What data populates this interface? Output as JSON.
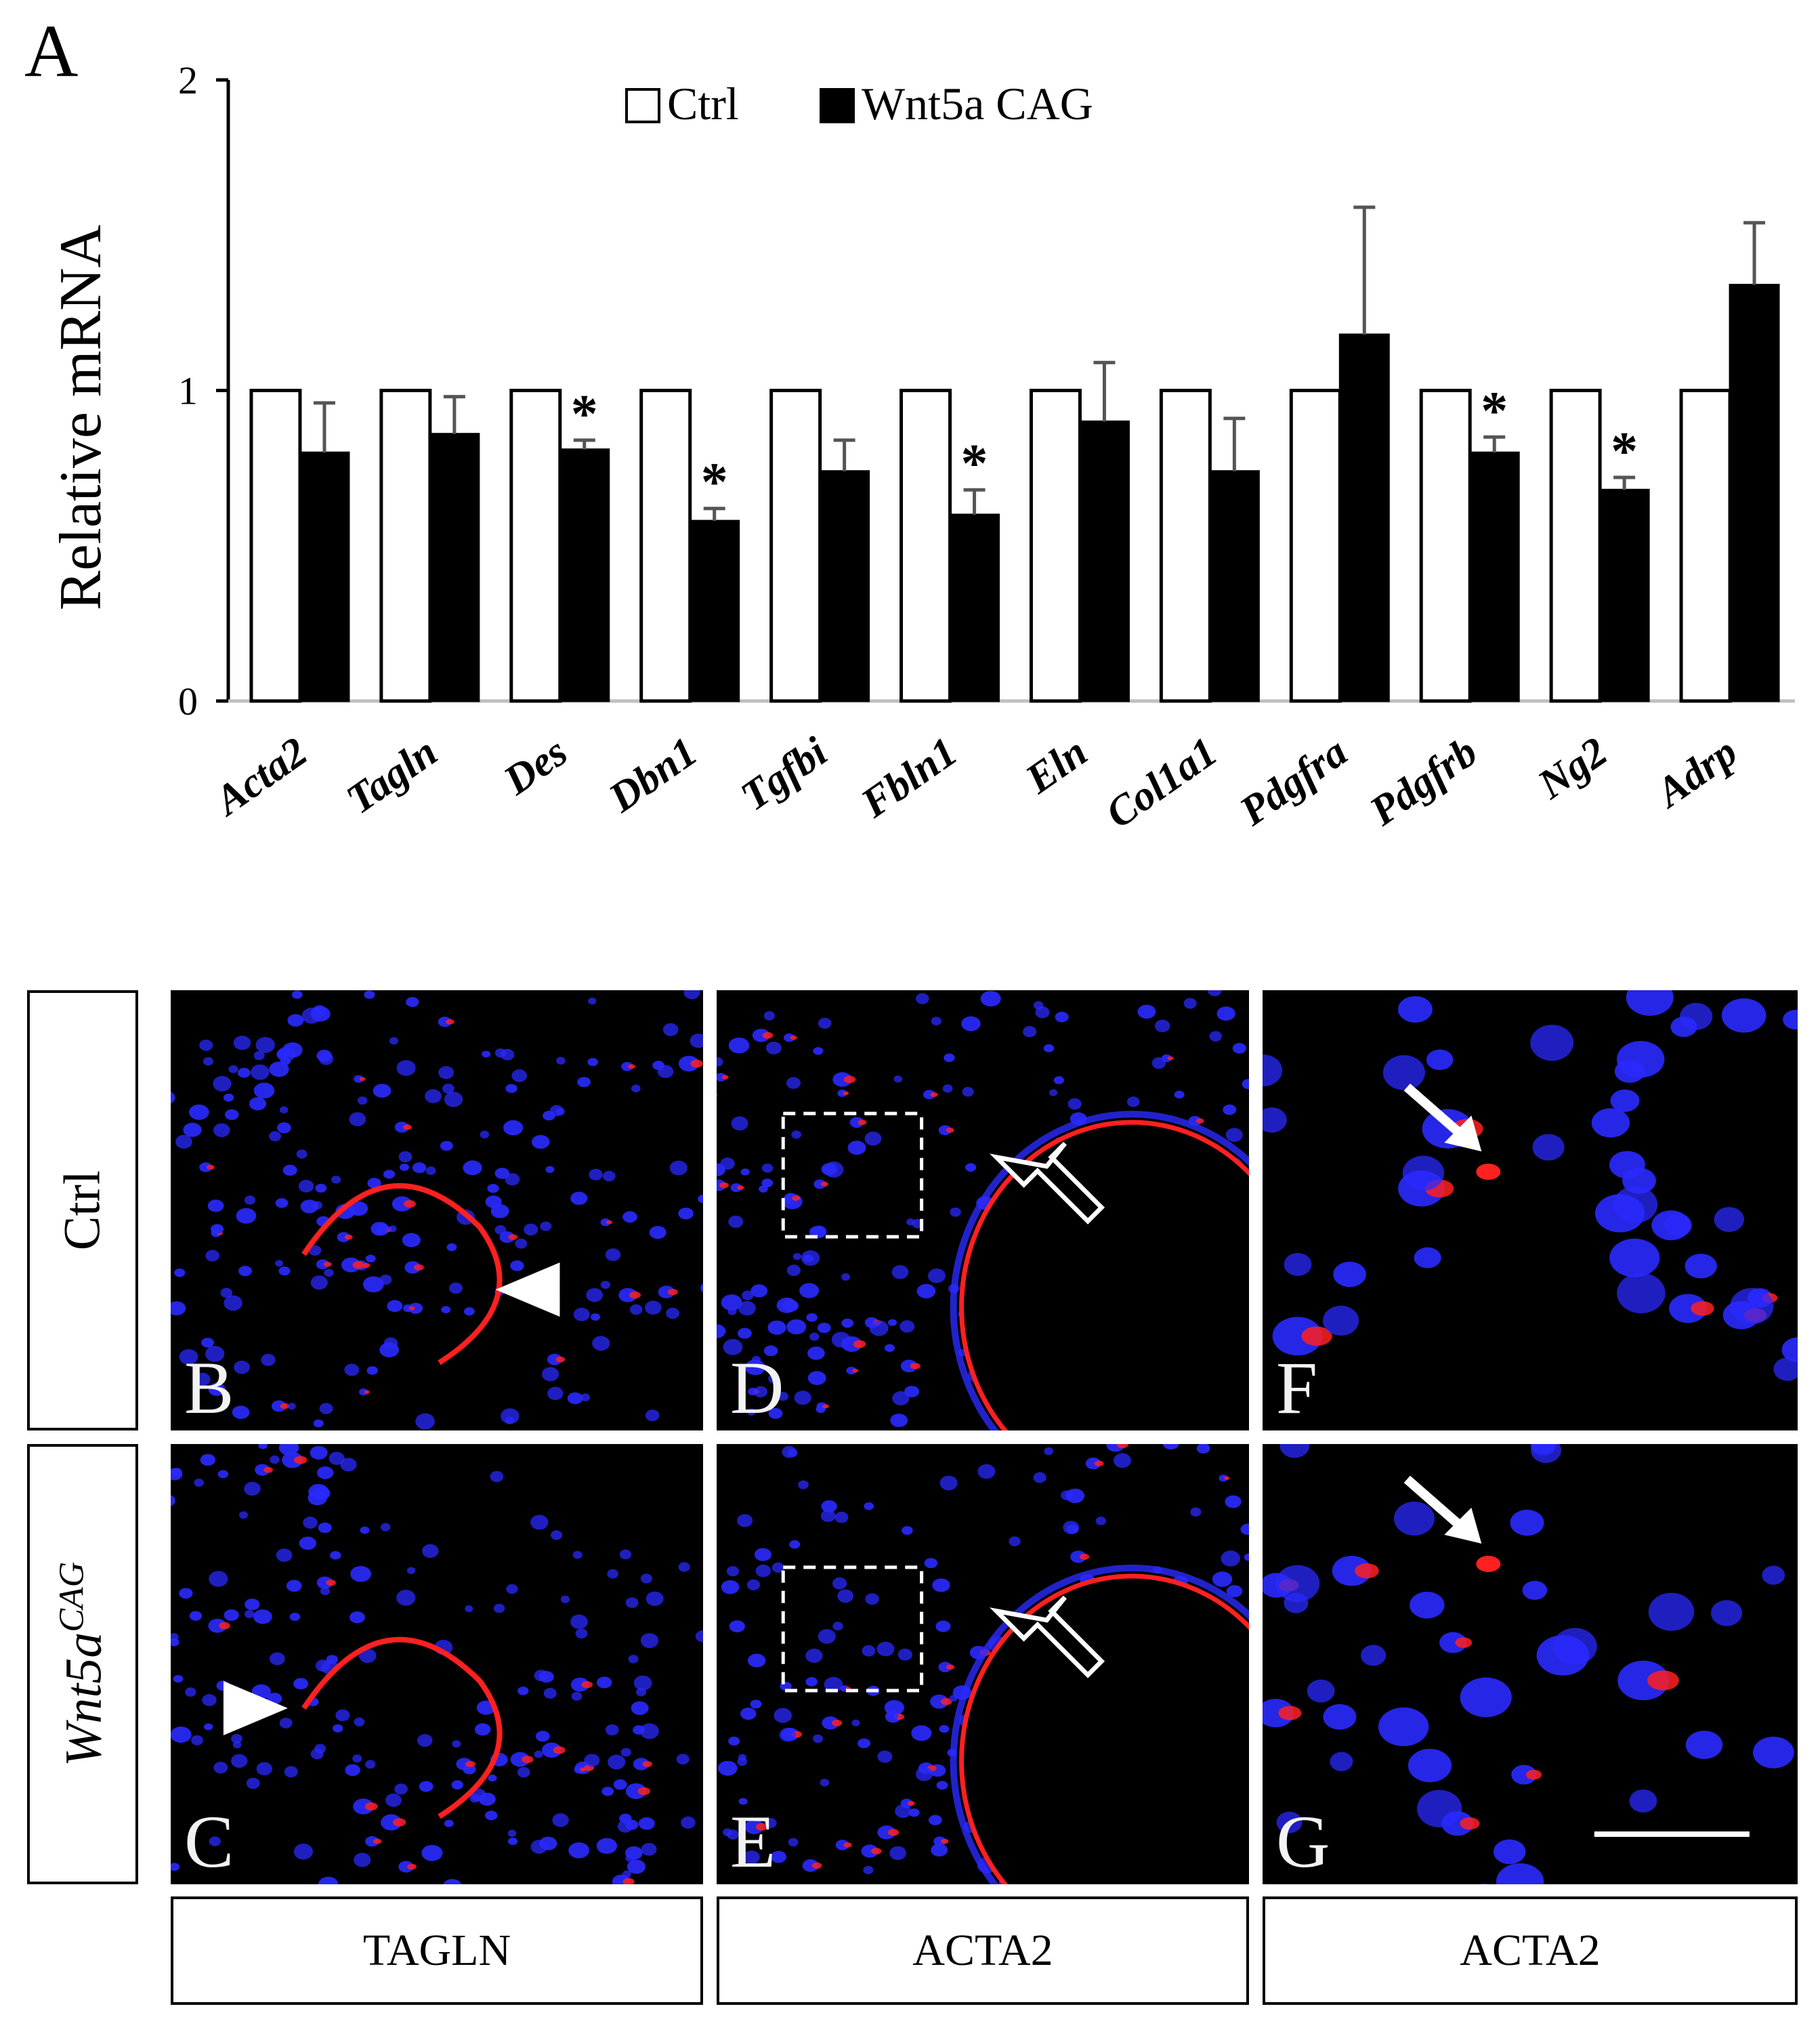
{
  "panel_a": {
    "letter": "A"
  },
  "chart_data": {
    "type": "bar",
    "title": "",
    "xlabel": "",
    "ylabel": "Relative mRNA",
    "ylim": [
      0,
      2
    ],
    "yticks": [
      "0",
      "1",
      "2"
    ],
    "categories": [
      "Acta2",
      "Tagln",
      "Des",
      "Dbn1",
      "Tgfbi",
      "Fbln1",
      "Eln",
      "Col1a1",
      "Pdgfra",
      "Pdgfrb",
      "Ng2",
      "Adrp"
    ],
    "series": [
      {
        "name": "Ctrl",
        "color": "#ffffff",
        "values": [
          1,
          1,
          1,
          1,
          1,
          1,
          1,
          1,
          1,
          1,
          1,
          1
        ]
      },
      {
        "name": "Wnt5a CAG",
        "color": "#000000",
        "values": [
          0.8,
          0.86,
          0.81,
          0.58,
          0.74,
          0.6,
          0.9,
          0.74,
          1.18,
          0.8,
          0.68,
          1.34
        ],
        "error": [
          0.16,
          0.12,
          0.03,
          0.04,
          0.1,
          0.08,
          0.19,
          0.17,
          0.41,
          0.05,
          0.04,
          0.2
        ]
      }
    ],
    "significance": [
      "",
      "",
      "*",
      "*",
      "",
      "*",
      "",
      "",
      "",
      "*",
      "*",
      ""
    ],
    "legend": "top-center",
    "grid": false
  },
  "micro_panels": [
    {
      "letter": "B",
      "marker": "arrowhead"
    },
    {
      "letter": "D",
      "marker": "open-arrow",
      "inset_box": true
    },
    {
      "letter": "F",
      "marker": "arrow"
    },
    {
      "letter": "C",
      "marker": "arrowhead"
    },
    {
      "letter": "E",
      "marker": "open-arrow",
      "inset_box": true
    },
    {
      "letter": "G",
      "marker": "arrow",
      "scale_bar": true
    }
  ],
  "row_labels": {
    "ctrl": "Ctrl",
    "wnt_base": "Wnt5a",
    "wnt_sup": "CAG"
  },
  "col_labels": [
    "TAGLN",
    "ACTA2",
    "ACTA2"
  ],
  "colors": {
    "stain_nuclei": "#2a2aff",
    "stain_marker": "#ff2020",
    "background": "#000000"
  }
}
